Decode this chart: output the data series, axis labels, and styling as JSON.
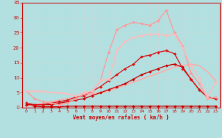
{
  "background_color": "#b2e0e0",
  "grid_color": "#c8d8d8",
  "xlabel": "Vent moyen/en rafales ( km/h )",
  "xlabel_color": "#cc0000",
  "tick_color": "#cc0000",
  "xlim": [
    -0.5,
    23.5
  ],
  "ylim": [
    0,
    35
  ],
  "xticks": [
    0,
    1,
    2,
    3,
    4,
    5,
    6,
    7,
    8,
    9,
    10,
    11,
    12,
    13,
    14,
    15,
    16,
    17,
    18,
    19,
    20,
    21,
    22,
    23
  ],
  "yticks": [
    0,
    5,
    10,
    15,
    20,
    25,
    30,
    35
  ],
  "series": [
    {
      "x": [
        0,
        1,
        2,
        3,
        4,
        5,
        6,
        7,
        8,
        9,
        10,
        11,
        12,
        13,
        14,
        15,
        16,
        17,
        18,
        19,
        20,
        21,
        22,
        23
      ],
      "y": [
        1.0,
        0.5,
        0.3,
        0.3,
        0.3,
        0.5,
        0.5,
        0.5,
        0.5,
        0.5,
        0.5,
        0.5,
        0.5,
        0.5,
        0.5,
        0.5,
        0.5,
        0.5,
        0.5,
        0.5,
        0.5,
        0.5,
        0.5,
        0.5
      ],
      "color": "#cc0000",
      "linewidth": 1.0,
      "marker": "D",
      "markersize": 2.0,
      "alpha": 1.0
    },
    {
      "x": [
        0,
        1,
        2,
        3,
        4,
        5,
        6,
        7,
        8,
        9,
        10,
        11,
        12,
        13,
        14,
        15,
        16,
        17,
        18,
        19,
        20,
        21,
        22,
        23
      ],
      "y": [
        0.5,
        1.0,
        1.5,
        2.0,
        2.5,
        3.0,
        3.5,
        4.0,
        4.5,
        5.0,
        5.5,
        6.5,
        7.5,
        8.5,
        9.5,
        10.5,
        11.5,
        12.5,
        13.5,
        14.0,
        14.5,
        14.0,
        12.0,
        9.0
      ],
      "color": "#ffaaaa",
      "linewidth": 1.2,
      "marker": null,
      "markersize": 0,
      "alpha": 1.0
    },
    {
      "x": [
        0,
        1,
        2,
        3,
        4,
        5,
        6,
        7,
        8,
        9,
        10,
        11,
        12,
        13,
        14,
        15,
        16,
        17,
        18,
        19,
        20,
        21,
        22,
        23
      ],
      "y": [
        1.0,
        1.0,
        1.0,
        1.0,
        1.5,
        2.0,
        2.5,
        3.0,
        4.0,
        5.0,
        6.0,
        7.0,
        8.0,
        9.5,
        11.0,
        12.0,
        13.0,
        14.0,
        14.5,
        13.5,
        9.5,
        6.0,
        3.5,
        3.0
      ],
      "color": "#cc0000",
      "linewidth": 1.0,
      "marker": "D",
      "markersize": 2.0,
      "alpha": 1.0
    },
    {
      "x": [
        0,
        1,
        2,
        3,
        4,
        5,
        6,
        7,
        8,
        9,
        10,
        11,
        12,
        13,
        14,
        15,
        16,
        17,
        18,
        19,
        20,
        21,
        22,
        23
      ],
      "y": [
        1.5,
        1.0,
        1.0,
        1.5,
        2.0,
        2.5,
        3.5,
        4.0,
        5.5,
        7.0,
        9.0,
        11.0,
        13.0,
        14.5,
        17.0,
        17.5,
        18.5,
        19.0,
        18.0,
        13.0,
        9.5,
        6.0,
        3.5,
        3.0
      ],
      "color": "#dd1111",
      "linewidth": 1.0,
      "marker": "D",
      "markersize": 2.0,
      "alpha": 1.0
    },
    {
      "x": [
        0,
        1,
        2,
        3,
        4,
        5,
        6,
        7,
        8,
        9,
        10,
        11,
        12,
        13,
        14,
        15,
        16,
        17,
        18,
        19,
        20,
        21,
        22,
        23
      ],
      "y": [
        5.5,
        3.0,
        2.0,
        1.5,
        1.0,
        1.5,
        3.0,
        4.5,
        5.0,
        9.0,
        18.5,
        26.0,
        27.5,
        28.5,
        28.0,
        27.5,
        29.0,
        32.5,
        25.0,
        20.5,
        11.5,
        8.0,
        3.0,
        3.5
      ],
      "color": "#ff9999",
      "linewidth": 1.0,
      "marker": "D",
      "markersize": 2.0,
      "alpha": 1.0
    },
    {
      "x": [
        0,
        1,
        2,
        3,
        4,
        5,
        6,
        7,
        8,
        9,
        10,
        11,
        12,
        13,
        14,
        15,
        16,
        17,
        18,
        19,
        20,
        21,
        22,
        23
      ],
      "y": [
        5.5,
        5.5,
        5.5,
        5.0,
        5.0,
        4.5,
        4.0,
        5.0,
        5.5,
        9.0,
        9.5,
        19.0,
        22.0,
        23.5,
        24.0,
        24.5,
        24.5,
        24.0,
        24.5,
        20.0,
        14.0,
        10.0,
        3.5,
        8.5
      ],
      "color": "#ffbbbb",
      "linewidth": 1.2,
      "marker": "D",
      "markersize": 2.0,
      "alpha": 1.0
    }
  ]
}
